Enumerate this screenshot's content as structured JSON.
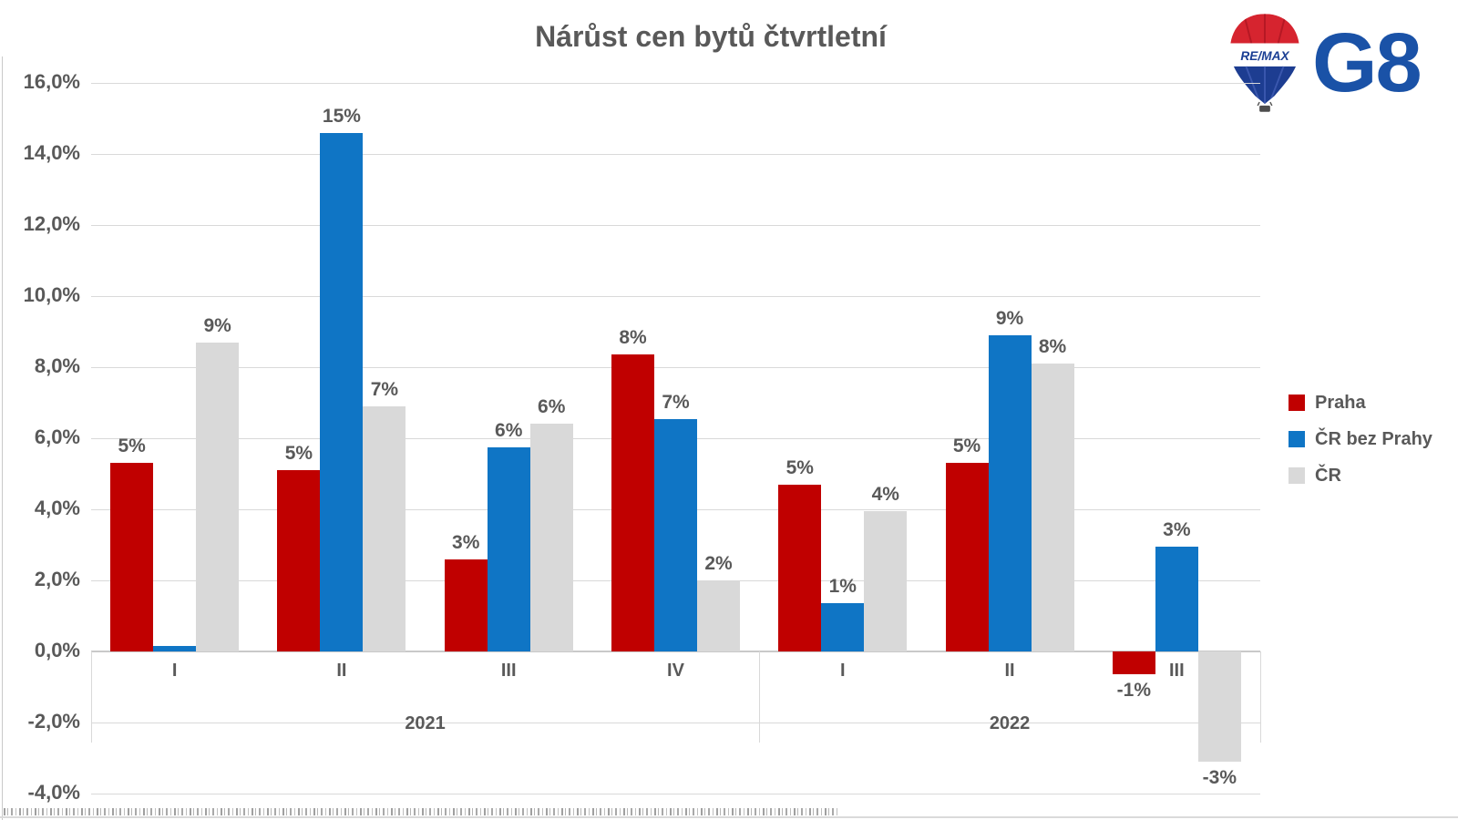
{
  "title": "Nárůst cen bytů čtvrtletní",
  "logo": {
    "balloon_text": "RE/MAX",
    "brand_text": "G8"
  },
  "chart_data": {
    "type": "bar",
    "title": "Nárůst cen bytů čtvrtletní",
    "group_labels": [
      "I",
      "II",
      "III",
      "IV",
      "I",
      "II",
      "III"
    ],
    "year_groups": [
      {
        "label": "2021",
        "quarters": 4
      },
      {
        "label": "2022",
        "quarters": 3
      }
    ],
    "y_axis": {
      "min": -4,
      "max": 16,
      "step": 2,
      "unit": "%",
      "tick_labels": [
        "16,0%",
        "14,0%",
        "12,0%",
        "10,0%",
        "8,0%",
        "6,0%",
        "4,0%",
        "2,0%",
        "0,0%",
        "-2,0%",
        "-4,0%"
      ]
    },
    "grid": true,
    "legend_position": "right",
    "series": [
      {
        "name": "Praha",
        "color": "#C00000",
        "values": [
          5.3,
          5.1,
          2.6,
          8.35,
          4.7,
          5.3,
          -0.65
        ],
        "labels": [
          "5%",
          "5%",
          "3%",
          "8%",
          "5%",
          "5%",
          "-1%"
        ]
      },
      {
        "name": "ČR bez Prahy",
        "color": "#0F75C5",
        "values": [
          0.15,
          14.6,
          5.75,
          6.55,
          1.35,
          8.9,
          2.95
        ],
        "labels": [
          "",
          "15%",
          "6%",
          "7%",
          "1%",
          "9%",
          "3%"
        ]
      },
      {
        "name": "ČR",
        "color": "#D9D9D9",
        "values": [
          8.7,
          6.9,
          6.4,
          2.0,
          3.95,
          8.1,
          -3.1
        ],
        "labels": [
          "9%",
          "7%",
          "6%",
          "2%",
          "4%",
          "8%",
          "-3%"
        ]
      }
    ],
    "colors": {
      "label_text": "#595959",
      "gridline": "#D9D9D9",
      "axis_line": "#C9C9C9"
    }
  }
}
